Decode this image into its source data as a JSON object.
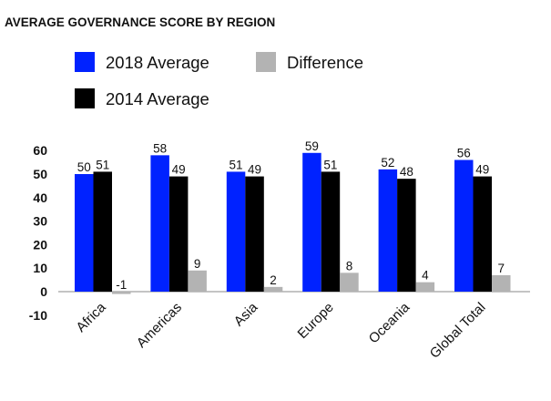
{
  "chart_data": {
    "type": "bar",
    "title": "AVERAGE GOVERNANCE SCORE BY REGION",
    "categories": [
      "Africa",
      "Americas",
      "Asia",
      "Europe",
      "Oceania",
      "Global Total"
    ],
    "series": [
      {
        "name": "2018 Average",
        "color": "#0022ff",
        "values": [
          50,
          58,
          51,
          59,
          52,
          56
        ]
      },
      {
        "name": "2014 Average",
        "color": "#000000",
        "values": [
          51,
          49,
          49,
          51,
          48,
          49
        ]
      },
      {
        "name": "Difference",
        "color": "#b3b3b3",
        "values": [
          -1,
          9,
          2,
          8,
          4,
          7
        ]
      }
    ],
    "ylim": [
      -10,
      60
    ],
    "yticks": [
      -10,
      0,
      10,
      20,
      30,
      40,
      50,
      60
    ],
    "grid": false,
    "legend": "top-left",
    "xlabel": "",
    "ylabel": ""
  }
}
